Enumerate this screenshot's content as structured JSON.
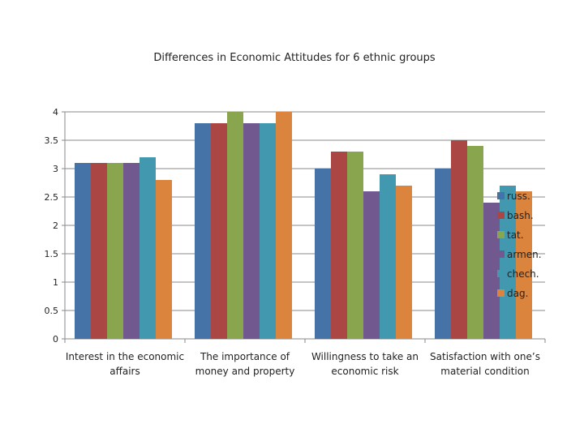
{
  "chart_data": {
    "type": "bar",
    "title": "Differences in Economic Attitudes for 6 ethnic groups",
    "categories": [
      [
        "Interest in the economic",
        "affairs"
      ],
      [
        "The importance of",
        "money and property"
      ],
      [
        "Willingness to take an",
        "economic risk"
      ],
      [
        "Satisfaction with one’s",
        "material condition"
      ]
    ],
    "series": [
      {
        "name": "russ.",
        "color": "#4572a7",
        "values": [
          3.1,
          3.8,
          3.0,
          3.0
        ]
      },
      {
        "name": "bash.",
        "color": "#aa4643",
        "values": [
          3.1,
          3.8,
          3.3,
          3.5
        ]
      },
      {
        "name": "tat.",
        "color": "#89a54e",
        "values": [
          3.1,
          4.0,
          3.3,
          3.4
        ]
      },
      {
        "name": "armen.",
        "color": "#71588f",
        "values": [
          3.1,
          3.8,
          2.6,
          2.4
        ]
      },
      {
        "name": "chech.",
        "color": "#4198af",
        "values": [
          3.2,
          3.8,
          2.9,
          2.7
        ]
      },
      {
        "name": "dag.",
        "color": "#db843d",
        "values": [
          2.8,
          4.0,
          2.7,
          2.6
        ]
      }
    ],
    "ylim": [
      0,
      4
    ],
    "yticks": [
      "0",
      "0.5",
      "1",
      "1.5",
      "2",
      "2.5",
      "3",
      "3.5",
      "4"
    ],
    "grid": true,
    "legend": "right"
  }
}
